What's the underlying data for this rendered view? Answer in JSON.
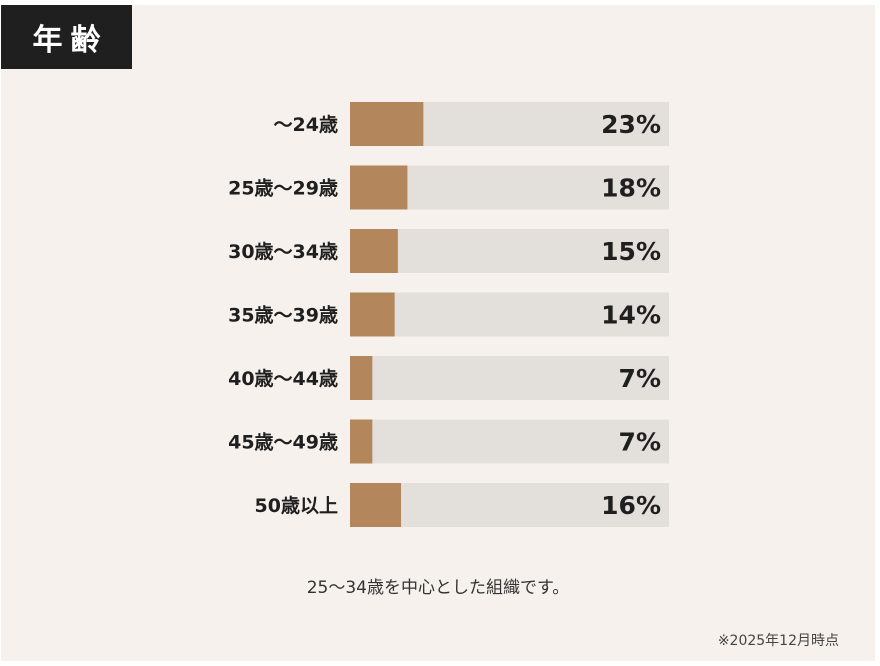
{
  "header": {
    "title": "年齢"
  },
  "chart_data": {
    "type": "bar",
    "orientation": "horizontal",
    "categories": [
      "〜24歳",
      "25歳〜29歳",
      "30歳〜34歳",
      "35歳〜39歳",
      "40歳〜44歳",
      "45歳〜49歳",
      "50歳以上"
    ],
    "values": [
      23,
      18,
      15,
      14,
      7,
      7,
      16
    ],
    "value_labels": [
      "23%",
      "18%",
      "15%",
      "14%",
      "7%",
      "7%",
      "16%"
    ],
    "unit": "%",
    "xlim": [
      0,
      100
    ],
    "colors": {
      "bar": "#b3865b",
      "track": "#e3dfdb",
      "text": "#1f1f1f"
    }
  },
  "caption": "25〜34歳を中心とした組織です。",
  "footnote": "※2025年12月時点"
}
